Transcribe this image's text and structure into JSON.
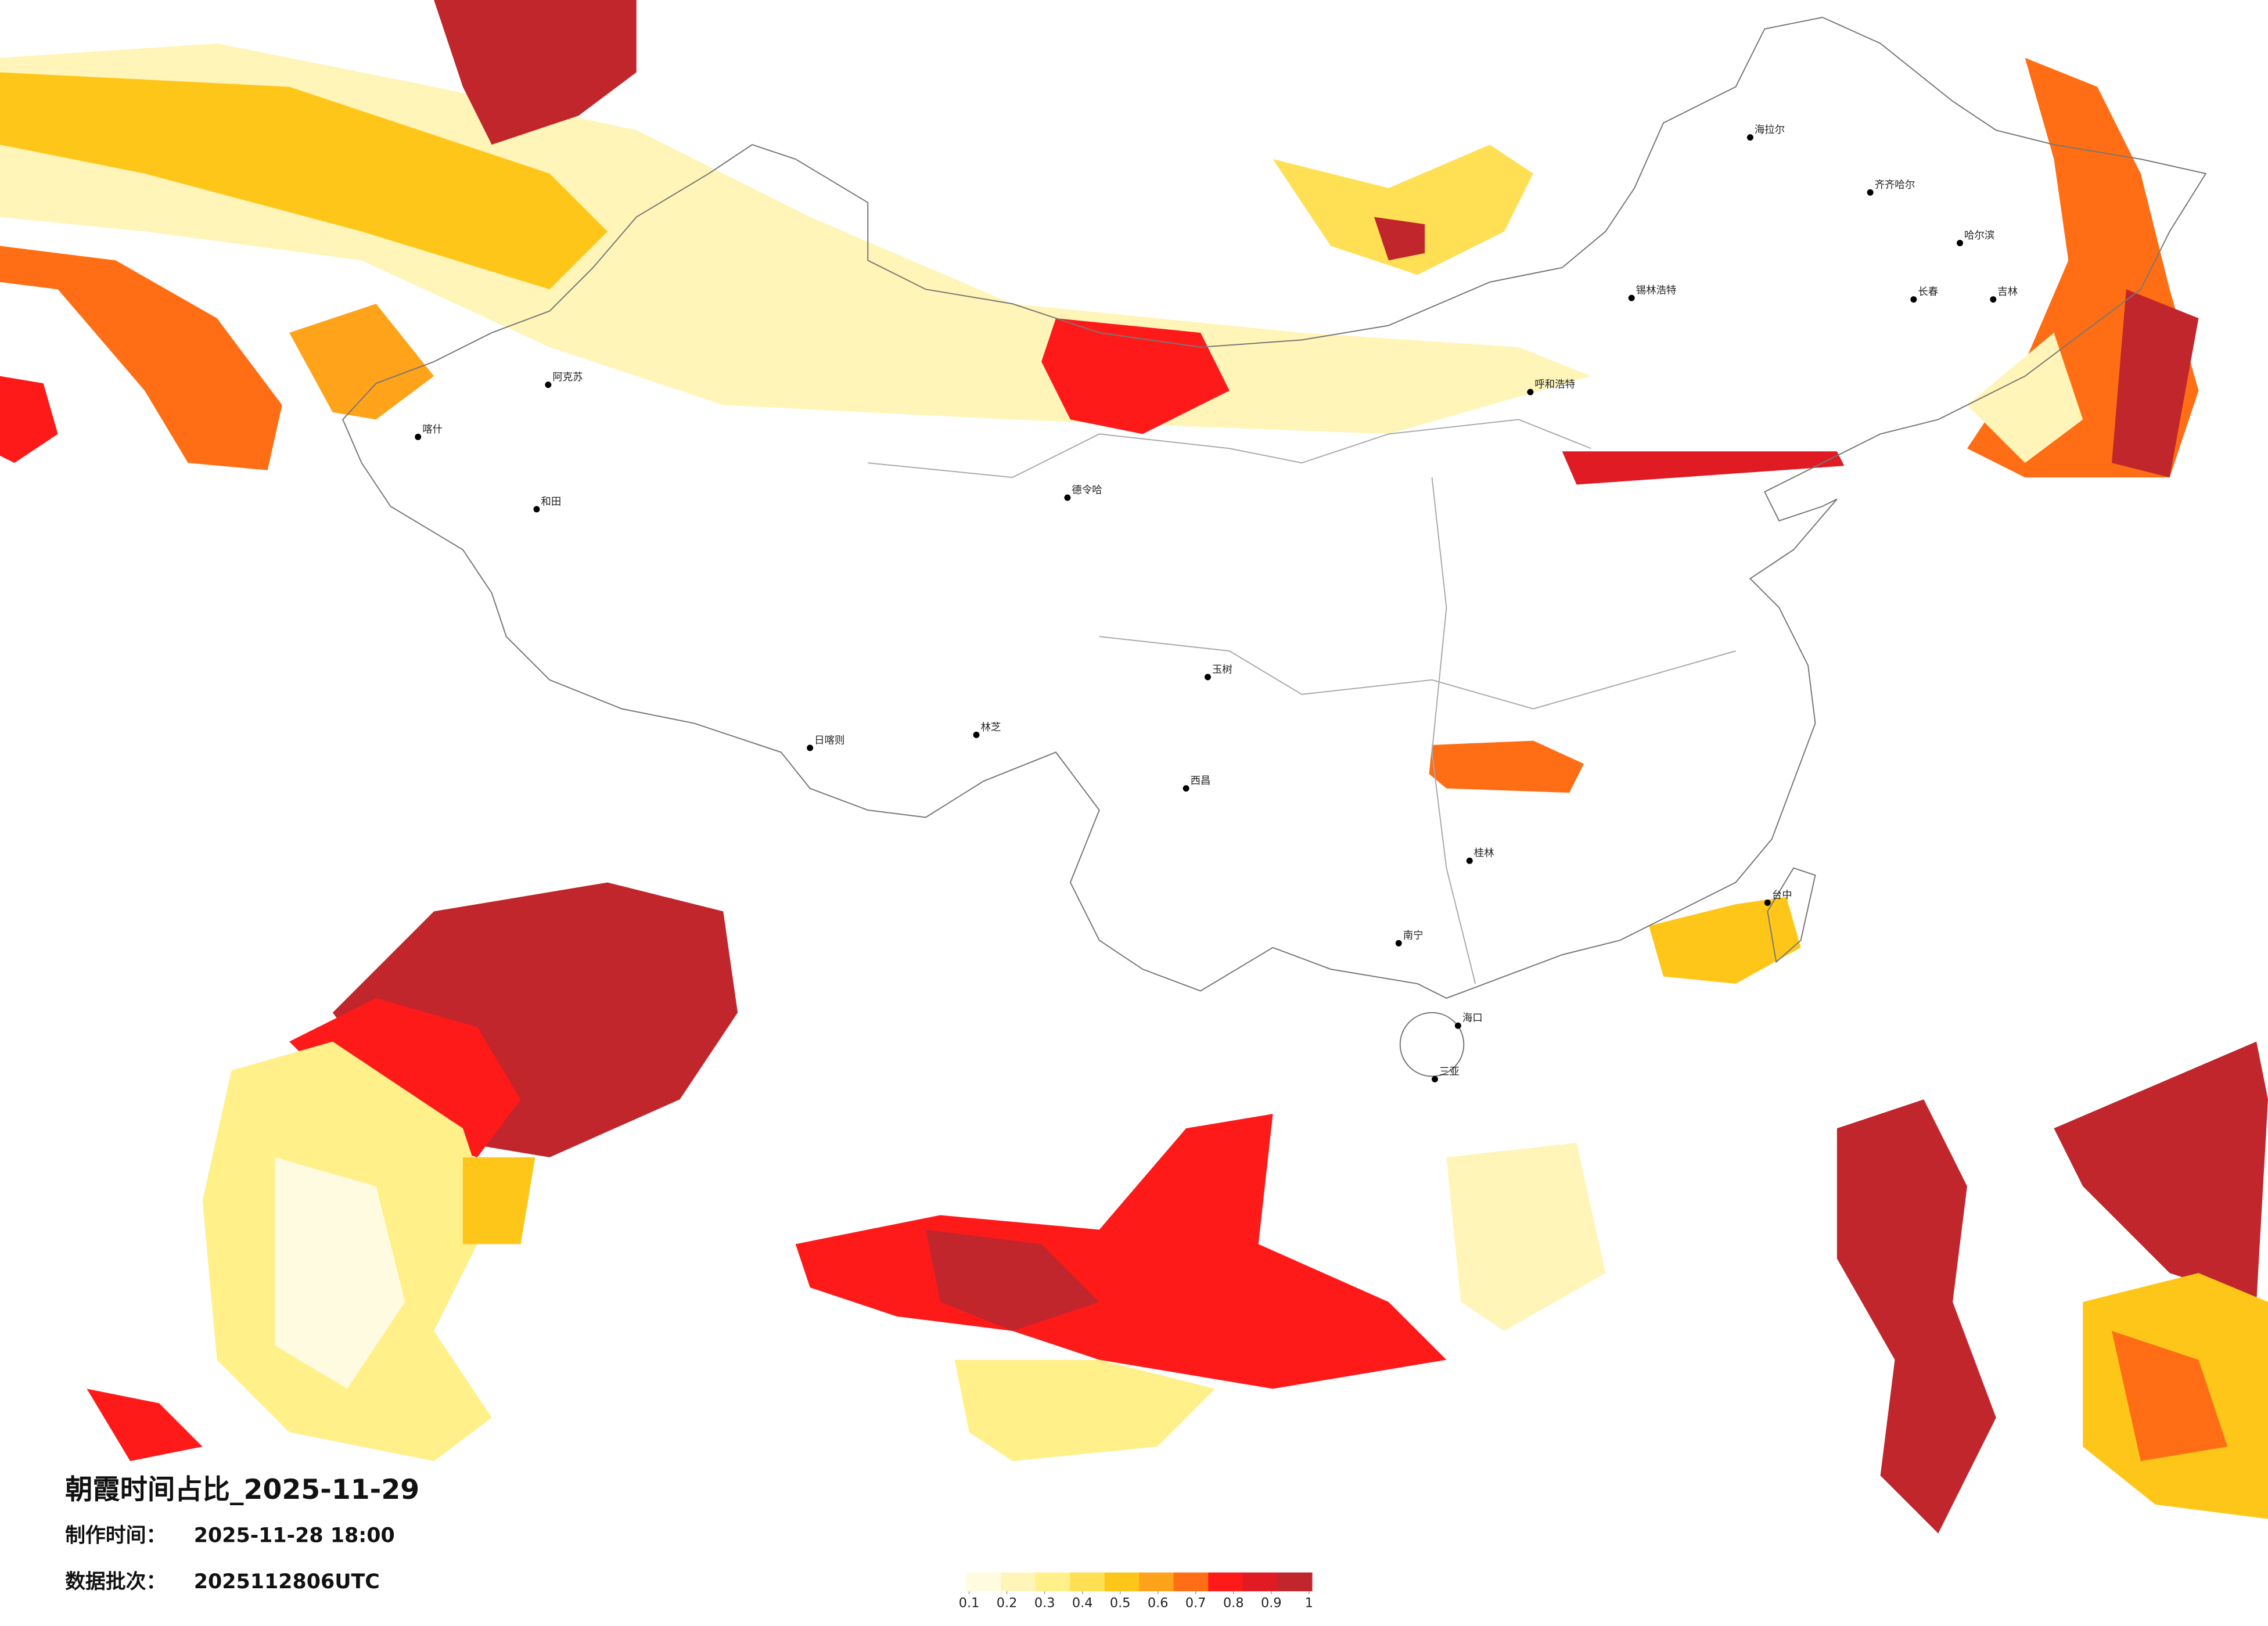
{
  "title": "朝霞时间占比_2025-11-29",
  "made_time_label": "制作时间：",
  "made_time": "2025-11-28 18:00",
  "batch_label": "数据批次：",
  "batch": "2025112806UTC",
  "colorbar": {
    "colors": [
      "#fffbe0",
      "#fff5b8",
      "#fff08a",
      "#ffe055",
      "#ffc61a",
      "#ffa31a",
      "#ff6e14",
      "#ff1a1a",
      "#e01b24",
      "#c0262c"
    ],
    "ticks": [
      0.1,
      0.2,
      0.3,
      0.4,
      0.5,
      0.6,
      0.7,
      0.8,
      0.9,
      1
    ]
  },
  "cities": [
    {
      "name": "海拉尔"
    },
    {
      "name": "齐齐哈尔"
    },
    {
      "name": "哈尔滨"
    },
    {
      "name": "长春"
    },
    {
      "name": "吉林"
    },
    {
      "name": "锡林浩特"
    },
    {
      "name": "呼和浩特"
    },
    {
      "name": "和田"
    },
    {
      "name": "德令哈"
    },
    {
      "name": "日喀则"
    },
    {
      "name": "林芝"
    },
    {
      "name": "南宁"
    },
    {
      "name": "海口"
    },
    {
      "name": "三亚"
    },
    {
      "name": "台中"
    },
    {
      "name": "喀什"
    },
    {
      "name": "阿克苏"
    },
    {
      "name": "玉树"
    },
    {
      "name": "西昌"
    },
    {
      "name": "桂林"
    }
  ]
}
